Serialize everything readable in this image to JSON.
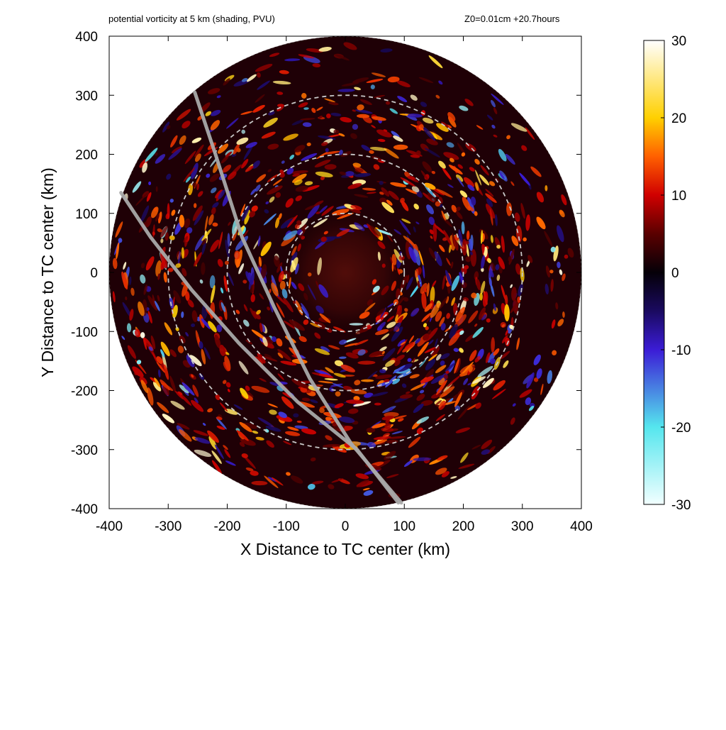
{
  "header": {
    "title_left": "potential vorticity at 5 km (shading, PVU)",
    "title_right": "Z0=0.01cm  +20.7hours"
  },
  "chart_data": {
    "type": "heatmap",
    "title": "potential vorticity at 5 km (shading, PVU)",
    "annotation": "Z0=0.01cm  +20.7hours",
    "xlabel": "X Distance to TC center (km)",
    "ylabel": "Y Distance to TC center (km)",
    "xlim": [
      -400,
      400
    ],
    "ylim": [
      -400,
      400
    ],
    "x_ticks": [
      -400,
      -300,
      -200,
      -100,
      0,
      100,
      200,
      300,
      400
    ],
    "y_ticks": [
      -400,
      -300,
      -200,
      -100,
      0,
      100,
      200,
      300,
      400
    ],
    "colorbar": {
      "label": "",
      "range": [
        -30,
        30
      ],
      "ticks": [
        30,
        20,
        10,
        0,
        -10,
        -20,
        -30
      ],
      "colors": [
        {
          "value": -30,
          "color": "#f2ffff"
        },
        {
          "value": -20,
          "color": "#55e6ee"
        },
        {
          "value": -10,
          "color": "#3b1cd6"
        },
        {
          "value": -5,
          "color": "#1a0a60"
        },
        {
          "value": 0,
          "color": "#050008"
        },
        {
          "value": 5,
          "color": "#5a0000"
        },
        {
          "value": 10,
          "color": "#d00000"
        },
        {
          "value": 15,
          "color": "#ff6000"
        },
        {
          "value": 20,
          "color": "#ffd000"
        },
        {
          "value": 30,
          "color": "#ffffff"
        }
      ]
    },
    "domain_radius_km": 400,
    "range_rings_km": [
      100,
      200,
      300
    ],
    "flight_tracks": [
      {
        "points": [
          [
            -255,
            305
          ],
          [
            -220,
            200
          ],
          [
            -175,
            60
          ],
          [
            -120,
            -60
          ],
          [
            -60,
            -180
          ],
          [
            10,
            -290
          ],
          [
            95,
            -390
          ]
        ]
      },
      {
        "points": [
          [
            -380,
            135
          ],
          [
            -330,
            60
          ],
          [
            -260,
            -30
          ],
          [
            -180,
            -120
          ],
          [
            -80,
            -220
          ],
          [
            20,
            -300
          ],
          [
            90,
            -390
          ]
        ]
      }
    ],
    "grid": false,
    "colors": {
      "ring": "#c8c8c8",
      "track": "#a9a9a9",
      "domain_edge": "#8c8c8c"
    }
  }
}
